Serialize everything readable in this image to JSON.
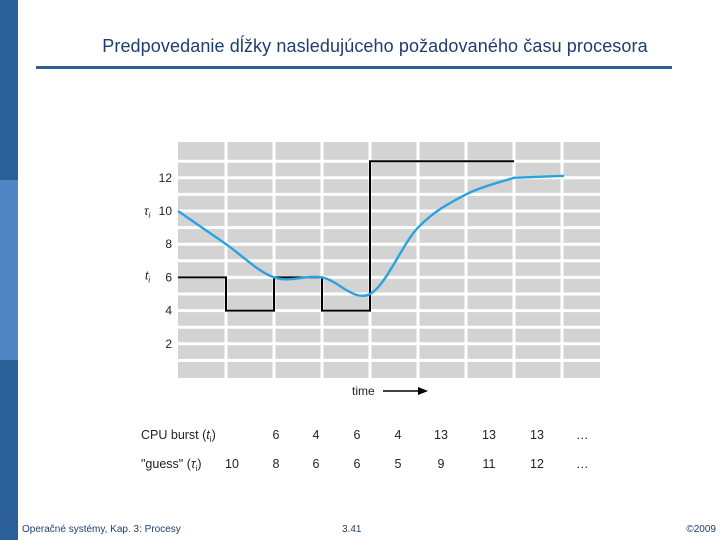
{
  "slide": {
    "title": "Predpovedanie dĺžky nasledujúceho požadovaného času procesora",
    "footer_left": "Operačné systémy, Kap. 3: Procesy",
    "footer_center": "3.41",
    "footer_right": "©2009",
    "accent_color": "#2b5f97"
  },
  "chart_data": {
    "type": "line",
    "xlabel": "time",
    "ylim": [
      0,
      14
    ],
    "yticks": [
      "2",
      "4",
      "6",
      "8",
      "10",
      "12"
    ],
    "grid": true,
    "series_labels": {
      "tau_main": "τ",
      "tau_sub": "i",
      "t_main": "t",
      "t_sub": "i"
    },
    "colors": {
      "actual": "#000000",
      "guess": "#29a3e0",
      "grid": "#ffffff",
      "plot_bg": "#d3d3d3"
    },
    "actual_burst": [
      6,
      4,
      6,
      4,
      13,
      13,
      13
    ],
    "guess": [
      10,
      8,
      6,
      6,
      5,
      9,
      11,
      12
    ],
    "table": {
      "rows": [
        {
          "label_main": "CPU burst (",
          "label_sym": "t",
          "label_sub": "i",
          "label_end": ")",
          "values": [
            "6",
            "4",
            "6",
            "4",
            "13",
            "13",
            "13"
          ],
          "ellipsis": "…"
        },
        {
          "label_main": "\"guess\" (",
          "label_sym": "τ",
          "label_sub": "i",
          "label_end": ")",
          "values": [
            "10",
            "8",
            "6",
            "6",
            "5",
            "9",
            "11",
            "12"
          ],
          "ellipsis": "…"
        }
      ]
    }
  }
}
